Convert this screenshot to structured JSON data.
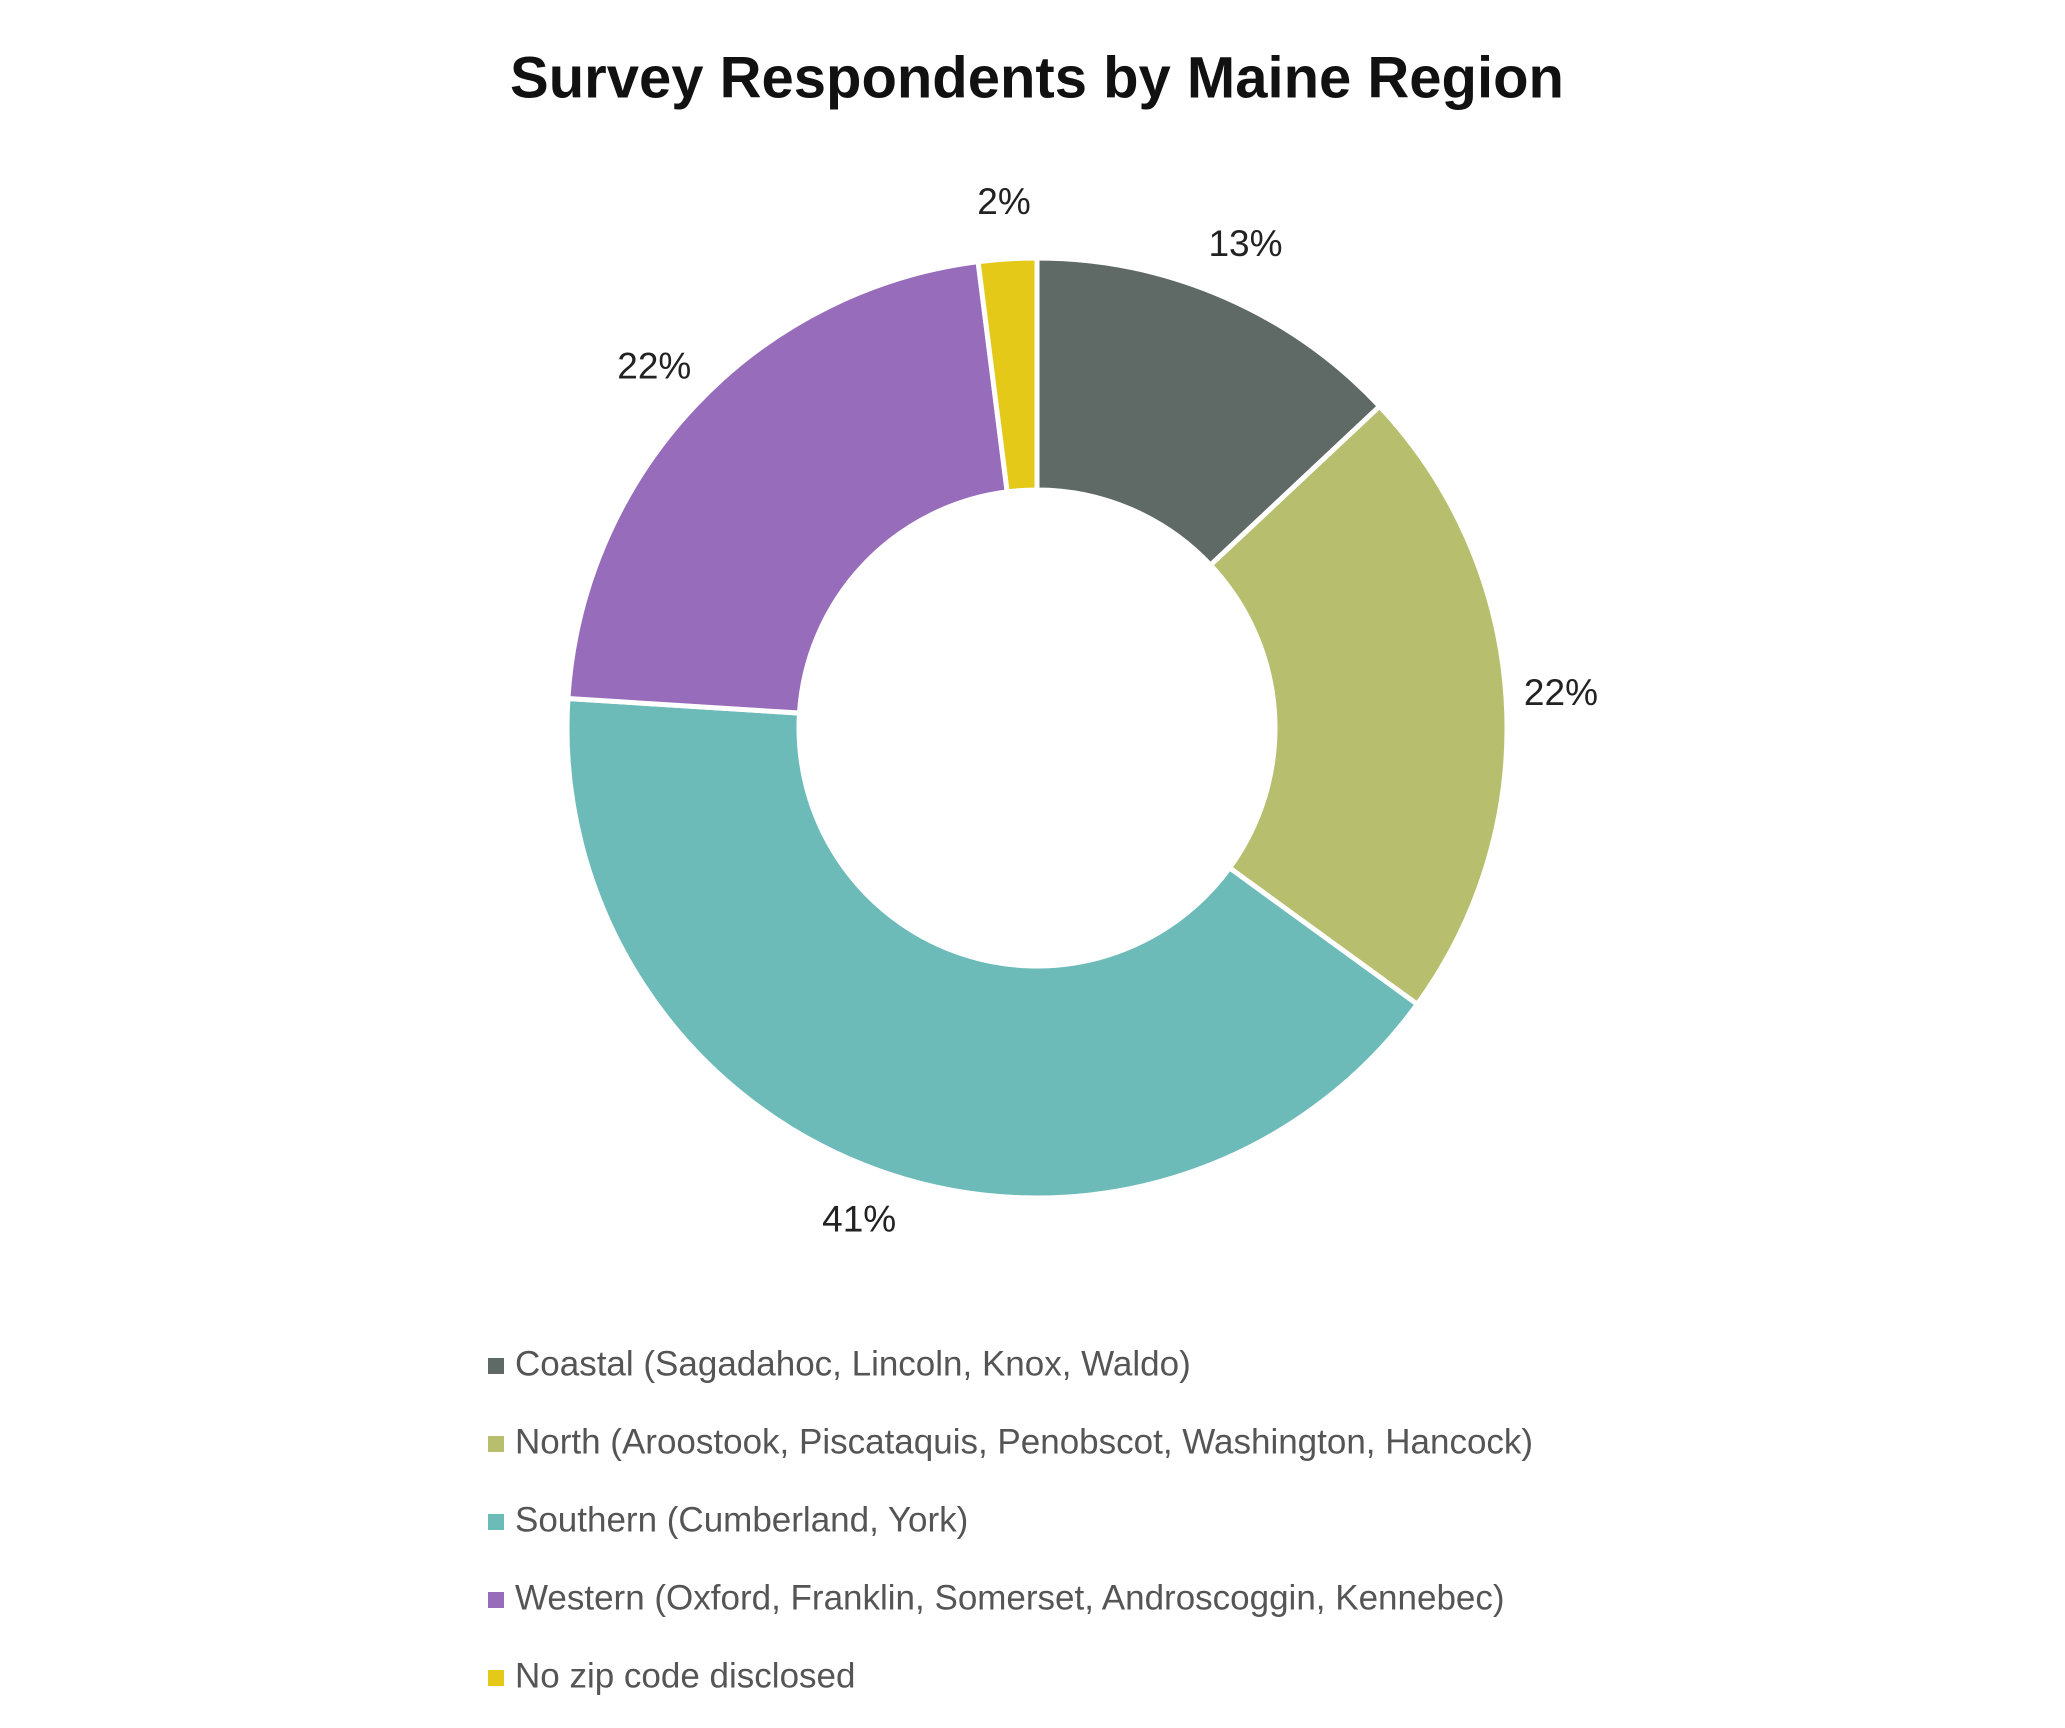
{
  "chart_data": {
    "type": "donut",
    "title": "Survey Respondents by Maine Region",
    "categories": [
      "Coastal (Sagadahoc, Lincoln, Knox, Waldo)",
      "North (Aroostook, Piscataquis, Penobscot, Washington, Hancock)",
      "Southern (Cumberland, York)",
      "Western (Oxford, Franklin, Somerset, Androscoggin, Kennebec)",
      "No zip code disclosed"
    ],
    "values": [
      13,
      22,
      41,
      22,
      2
    ],
    "value_labels": [
      "13%",
      "22%",
      "41%",
      "22%",
      "2%"
    ],
    "colors": [
      "#5f6966",
      "#b7be6e",
      "#6dbbb8",
      "#976cbb",
      "#e4c918"
    ],
    "legend": "bottom"
  }
}
